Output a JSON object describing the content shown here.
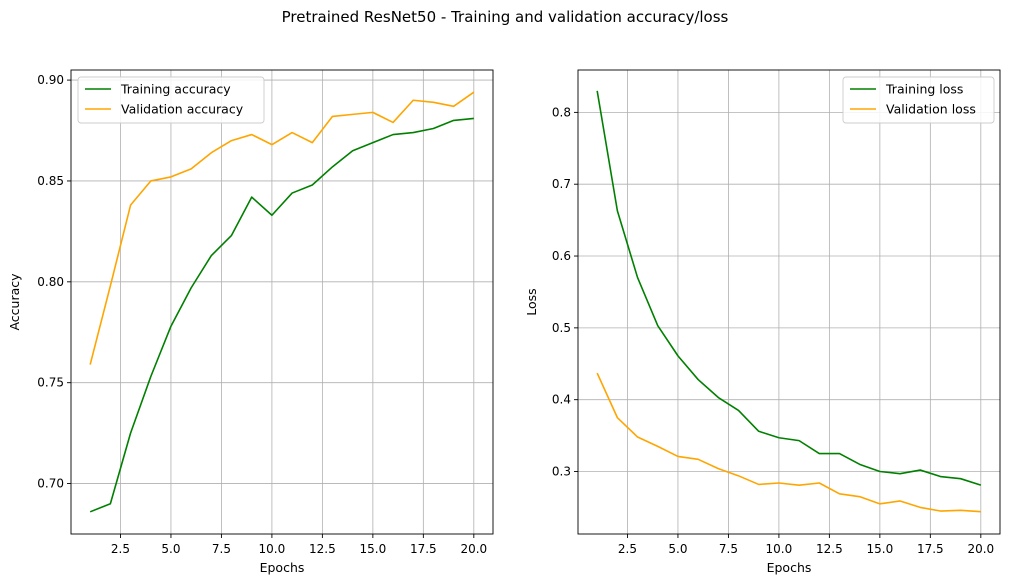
{
  "title": "Pretrained ResNet50 - Training and validation accuracy/loss",
  "colors": {
    "training": "#008000",
    "validation": "#FFA500",
    "grid": "#b0b0b0"
  },
  "chart_data": [
    {
      "type": "line",
      "xlabel": "Epochs",
      "ylabel": "Accuracy",
      "xlim": [
        0.05,
        20.95
      ],
      "ylim": [
        0.675,
        0.905
      ],
      "xticks": [
        2.5,
        5.0,
        7.5,
        10.0,
        12.5,
        15.0,
        17.5,
        20.0
      ],
      "xtick_labels": [
        "2.5",
        "5.0",
        "7.5",
        "10.0",
        "12.5",
        "15.0",
        "17.5",
        "20.0"
      ],
      "yticks": [
        0.7,
        0.75,
        0.8,
        0.85,
        0.9
      ],
      "ytick_labels": [
        "0.70",
        "0.75",
        "0.80",
        "0.85",
        "0.90"
      ],
      "grid": true,
      "legend": "upper-left",
      "x": [
        1,
        2,
        3,
        4,
        5,
        6,
        7,
        8,
        9,
        10,
        11,
        12,
        13,
        14,
        15,
        16,
        17,
        18,
        19,
        20
      ],
      "series": [
        {
          "name": "Training accuracy",
          "color": "#008000",
          "values": [
            0.686,
            0.69,
            0.725,
            0.753,
            0.778,
            0.797,
            0.813,
            0.823,
            0.842,
            0.833,
            0.844,
            0.848,
            0.857,
            0.865,
            0.869,
            0.873,
            0.874,
            0.876,
            0.88,
            0.881
          ]
        },
        {
          "name": "Validation accuracy",
          "color": "#FFA500",
          "values": [
            0.759,
            0.798,
            0.838,
            0.85,
            0.852,
            0.856,
            0.864,
            0.87,
            0.873,
            0.868,
            0.874,
            0.869,
            0.882,
            0.883,
            0.884,
            0.879,
            0.89,
            0.889,
            0.887,
            0.894
          ]
        }
      ]
    },
    {
      "type": "line",
      "xlabel": "Epochs",
      "ylabel": "Loss",
      "xlim": [
        0.05,
        20.95
      ],
      "ylim": [
        0.213,
        0.859
      ],
      "xticks": [
        2.5,
        5.0,
        7.5,
        10.0,
        12.5,
        15.0,
        17.5,
        20.0
      ],
      "xtick_labels": [
        "2.5",
        "5.0",
        "7.5",
        "10.0",
        "12.5",
        "15.0",
        "17.5",
        "20.0"
      ],
      "yticks": [
        0.3,
        0.4,
        0.5,
        0.6,
        0.7,
        0.8
      ],
      "ytick_labels": [
        "0.3",
        "0.4",
        "0.5",
        "0.6",
        "0.7",
        "0.8"
      ],
      "grid": true,
      "legend": "upper-right",
      "x": [
        1,
        2,
        3,
        4,
        5,
        6,
        7,
        8,
        9,
        10,
        11,
        12,
        13,
        14,
        15,
        16,
        17,
        18,
        19,
        20
      ],
      "series": [
        {
          "name": "Training loss",
          "color": "#008000",
          "values": [
            0.83,
            0.663,
            0.57,
            0.503,
            0.461,
            0.428,
            0.403,
            0.385,
            0.356,
            0.347,
            0.343,
            0.325,
            0.325,
            0.31,
            0.3,
            0.297,
            0.302,
            0.293,
            0.29,
            0.281
          ]
        },
        {
          "name": "Validation loss",
          "color": "#FFA500",
          "values": [
            0.437,
            0.375,
            0.348,
            0.335,
            0.321,
            0.317,
            0.304,
            0.294,
            0.282,
            0.284,
            0.281,
            0.284,
            0.269,
            0.265,
            0.255,
            0.259,
            0.25,
            0.245,
            0.246,
            0.244
          ]
        }
      ]
    }
  ]
}
